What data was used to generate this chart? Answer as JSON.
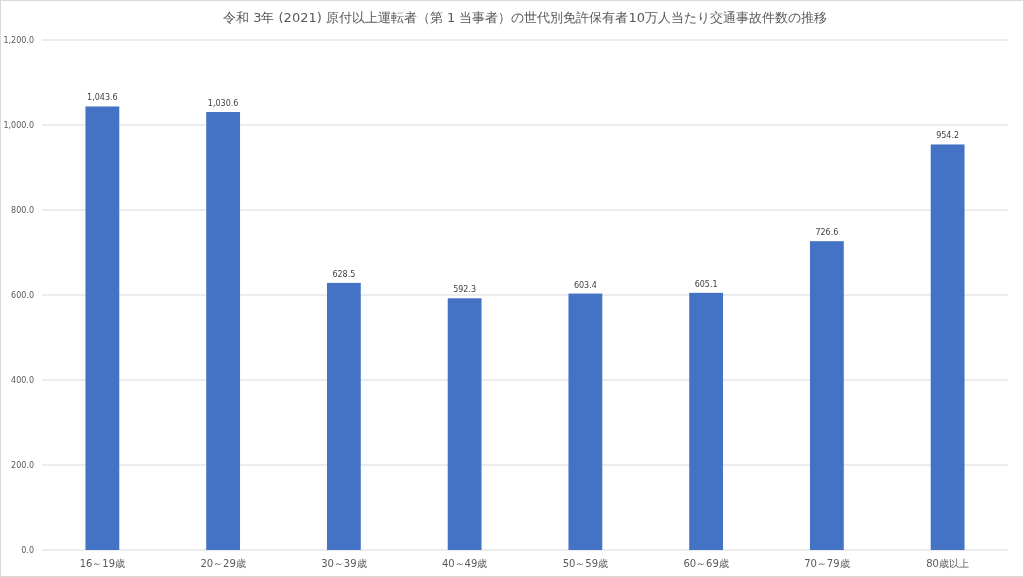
{
  "chart_data": {
    "type": "bar",
    "title": "令和 3年 (2021) 原付以上運転者（第 1 当事者）の世代別免許保有者10万人当たり交通事故件数の推移",
    "categories": [
      "16～19歳",
      "20～29歳",
      "30～39歳",
      "40～49歳",
      "50～59歳",
      "60～69歳",
      "70～79歳",
      "80歳以上"
    ],
    "values": [
      1043.6,
      1030.6,
      628.5,
      592.3,
      603.4,
      605.1,
      726.6,
      954.2
    ],
    "value_labels": [
      "1,043.6",
      "1,030.6",
      "628.5",
      "592.3",
      "603.4",
      "605.1",
      "726.6",
      "954.2"
    ],
    "color": "#4472c4",
    "ylim": [
      0,
      1200
    ],
    "yticks": [
      {
        "value": 0,
        "label": "0.0"
      },
      {
        "value": 200,
        "label": "200.0"
      },
      {
        "value": 400,
        "label": "400.0"
      },
      {
        "value": 600,
        "label": "600.0"
      },
      {
        "value": 800,
        "label": "800.0"
      },
      {
        "value": 1000,
        "label": "1,000.0"
      },
      {
        "value": 1200,
        "label": "1,200.0"
      }
    ],
    "grid": "y"
  }
}
